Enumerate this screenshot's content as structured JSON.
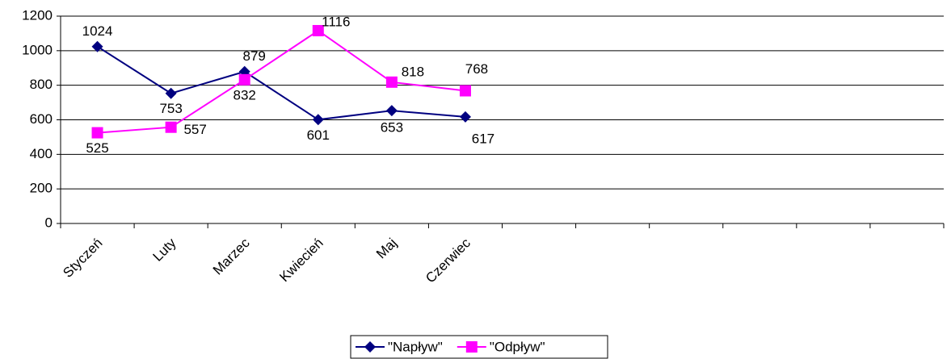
{
  "chart_data": {
    "type": "line",
    "categories": [
      "Styczeń",
      "Luty",
      "Marzec",
      "Kwiecień",
      "Maj",
      "Czerwiec",
      null,
      null,
      null,
      null,
      null,
      null
    ],
    "series": [
      {
        "name": "\"Napływ\"",
        "color": "#000080",
        "marker": "diamond",
        "values": [
          1024,
          753,
          879,
          601,
          653,
          617,
          null,
          null,
          null,
          null,
          null,
          null
        ]
      },
      {
        "name": "\"Odpływ\"",
        "color": "#ff00ff",
        "marker": "square",
        "values": [
          525,
          557,
          832,
          1116,
          818,
          768,
          null,
          null,
          null,
          null,
          null,
          null
        ]
      }
    ],
    "ylim": [
      0,
      1200
    ],
    "yticks": [
      0,
      200,
      400,
      600,
      800,
      1000,
      1200
    ],
    "grid": true,
    "legend": "bottom"
  }
}
